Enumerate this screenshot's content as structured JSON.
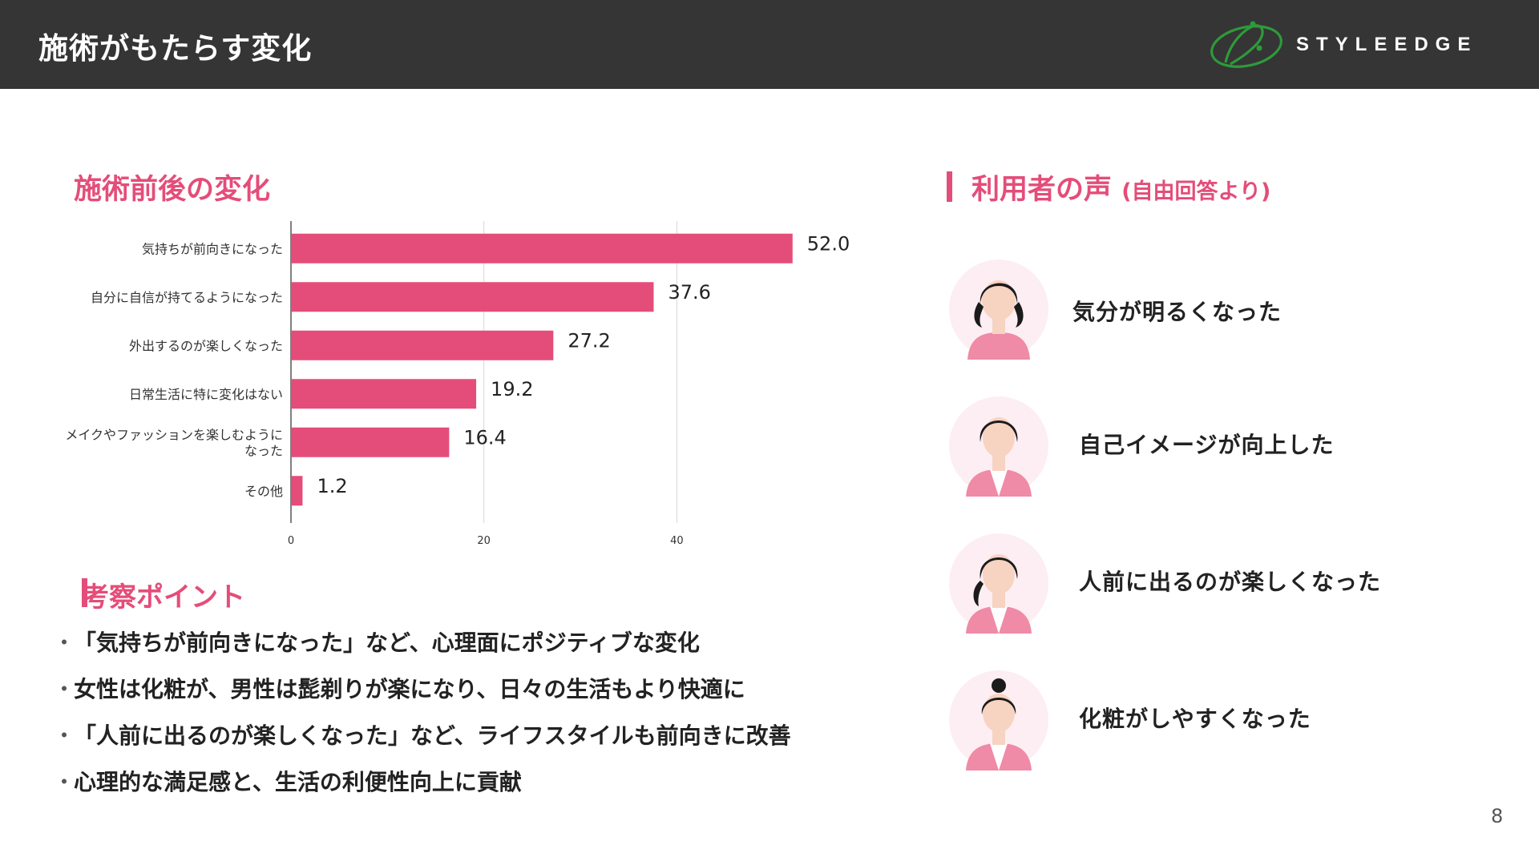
{
  "header": {
    "title": "施術がもたらす変化",
    "logo_text": "STYLEEDGE",
    "logo_color": "#2e9a3a",
    "background": "#353535"
  },
  "accent_color": "#e44d79",
  "chart_section": {
    "title": "施術前後の変化"
  },
  "chart_data": {
    "type": "bar",
    "orientation": "horizontal",
    "categories": [
      "気持ちが前向きになった",
      "自分に自信が持てるようになった",
      "外出するのが楽しくなった",
      "日常生活に特に変化はない",
      "メイクやファッションを楽しむようになった",
      "その他"
    ],
    "category_lines": [
      [
        "気持ちが前向きになった"
      ],
      [
        "自分に自信が持てるようになった"
      ],
      [
        "外出するのが楽しくなった"
      ],
      [
        "日常生活に特に変化はない"
      ],
      [
        "メイクやファッションを楽しむように",
        "なった"
      ],
      [
        "その他"
      ]
    ],
    "values": [
      52.0,
      37.6,
      27.2,
      19.2,
      16.4,
      1.2
    ],
    "value_labels": [
      "52.0",
      "37.6",
      "27.2",
      "19.2",
      "16.4",
      "1.2"
    ],
    "xticks": [
      0,
      20,
      40
    ],
    "xlim": [
      0,
      58
    ],
    "grid": true,
    "bar_color": "#e44d79"
  },
  "insights": {
    "title": "考察ポイント",
    "bullet_char": "・",
    "items": [
      "「気持ちが前向きになった」など、心理面にポジティブな変化",
      "女性は化粧が、男性は髭剃りが楽になり、日々の生活もより快適に",
      "「人前に出るのが楽しくなった」など、ライフスタイルも前向きに改善",
      "心理的な満足感と、生活の利便性向上に貢献"
    ]
  },
  "voices": {
    "title": "利用者の声",
    "subtitle": "(自由回答より)",
    "items": [
      {
        "text": "気分が明るくなった",
        "avatar": "woman-twin-tails-avatar-icon"
      },
      {
        "text": "自己イメージが向上した",
        "avatar": "woman-short-hair-avatar-icon"
      },
      {
        "text": "人前に出るのが楽しくなった",
        "avatar": "woman-side-ponytail-avatar-icon"
      },
      {
        "text": "化粧がしやすくなった",
        "avatar": "woman-bun-avatar-icon"
      }
    ]
  },
  "page_number": "8"
}
